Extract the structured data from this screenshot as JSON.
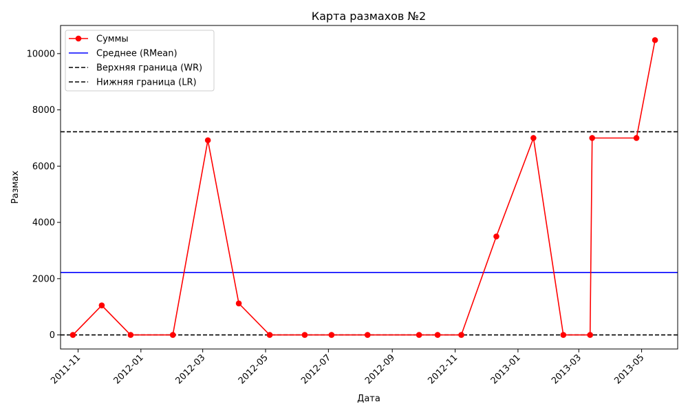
{
  "chart_data": {
    "type": "line",
    "title": "Карта размахов №2",
    "xlabel": "Дата",
    "ylabel": "Размах",
    "x_ticks": [
      "2011-11",
      "2012-01",
      "2012-03",
      "2012-05",
      "2012-07",
      "2012-09",
      "2012-11",
      "2013-01",
      "2013-03",
      "2013-05"
    ],
    "y_ticks": [
      0,
      2000,
      4000,
      6000,
      8000,
      10000
    ],
    "ylim": [
      -500,
      11000
    ],
    "xlim": [
      "2011-10-15",
      "2013-06-05"
    ],
    "grid": false,
    "legend_position": "top-left",
    "series": [
      {
        "name": "Суммы",
        "color": "#ff0000",
        "marker": "circle",
        "x": [
          "2011-10-27",
          "2011-11-24",
          "2011-12-22",
          "2012-02-01",
          "2012-03-06",
          "2012-04-05",
          "2012-05-05",
          "2012-06-08",
          "2012-07-04",
          "2012-08-08",
          "2012-09-27",
          "2012-10-15",
          "2012-11-07",
          "2012-12-11",
          "2013-01-16",
          "2013-02-14",
          "2013-03-12",
          "2013-03-14",
          "2013-04-26",
          "2013-05-14"
        ],
        "y": [
          0,
          1050,
          0,
          0,
          6920,
          1120,
          0,
          0,
          0,
          0,
          0,
          0,
          0,
          3500,
          7000,
          0,
          0,
          7000,
          7000,
          10480
        ]
      }
    ],
    "hlines": [
      {
        "name": "Среднее (RMean)",
        "y": 2220,
        "color": "#0000ff",
        "style": "solid"
      },
      {
        "name": "Верхняя граница (WR)",
        "y": 7220,
        "color": "#000000",
        "style": "dashed"
      },
      {
        "name": "Нижняя граница (LR)",
        "y": 0,
        "color": "#000000",
        "style": "dashed"
      }
    ]
  }
}
